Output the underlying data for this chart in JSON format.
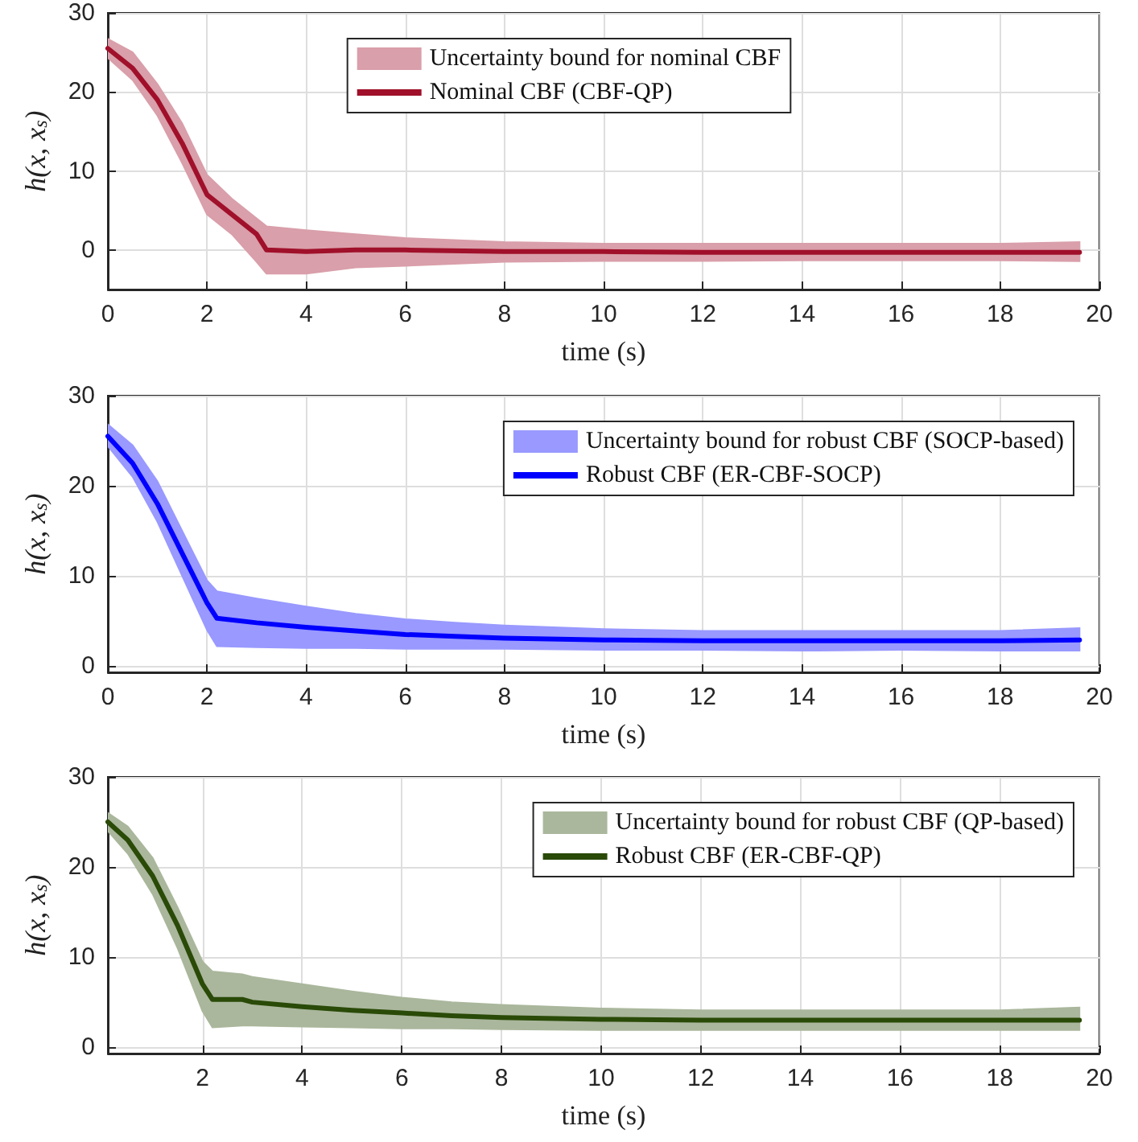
{
  "chart_data": [
    {
      "type": "line",
      "xlabel": "time (s)",
      "ylabel": "h(x, x$_{s}$)",
      "xlim": [
        0,
        20
      ],
      "ylim": [
        -5,
        30
      ],
      "xticks": [
        0,
        2,
        4,
        6,
        8,
        10,
        12,
        14,
        16,
        18,
        20
      ],
      "yticks": [
        0,
        10,
        20,
        30
      ],
      "grid": true,
      "legend": "top",
      "line_style": "solid",
      "marker": "none",
      "annotations": [
        "Uncertainty bound for nominal CBF"
      ],
      "series": [
        {
          "name": "Nominal CBF (CBF-QP)",
          "color": "#a0102a",
          "x": [
            0,
            0.5,
            1,
            1.5,
            2,
            2.5,
            3,
            3.2,
            4,
            5,
            6,
            8,
            10,
            12,
            14,
            16,
            18,
            19.6
          ],
          "values": [
            25.5,
            23,
            19,
            13.5,
            7,
            4.5,
            2,
            0,
            -0.2,
            0,
            0,
            -0.2,
            -0.2,
            -0.3,
            -0.3,
            -0.3,
            -0.3,
            -0.3
          ],
          "lower": [
            24.3,
            21.5,
            17,
            11,
            4.5,
            2,
            -1.5,
            -3,
            -3,
            -2.2,
            -2,
            -1.5,
            -1.4,
            -1.4,
            -1.3,
            -1.3,
            -1.3,
            -1.4
          ],
          "upper": [
            26.7,
            25,
            21,
            16,
            9.5,
            6.5,
            4,
            3,
            2.5,
            2,
            1.5,
            1,
            0.8,
            0.8,
            0.8,
            0.8,
            0.8,
            1
          ]
        }
      ]
    },
    {
      "type": "line",
      "xlabel": "time (s)",
      "ylabel": "h(x, x$_{s}$)",
      "xlim": [
        0,
        20
      ],
      "ylim": [
        -0.7,
        30
      ],
      "xticks": [
        0,
        2,
        4,
        6,
        8,
        10,
        12,
        14,
        16,
        18,
        20
      ],
      "yticks": [
        0,
        10,
        20,
        30
      ],
      "grid": true,
      "legend": "top right",
      "line_style": "solid",
      "marker": "none",
      "annotations": [
        "Uncertainty bound for robust CBF (SOCP-based)"
      ],
      "series": [
        {
          "name": "Robust CBF (ER-CBF-SOCP)",
          "color": "#0000ff",
          "x": [
            0,
            0.5,
            1,
            1.5,
            2,
            2.2,
            3,
            4,
            5,
            6,
            7,
            8,
            10,
            12,
            14,
            16,
            18,
            19.6
          ],
          "values": [
            25.5,
            22.5,
            18,
            12.5,
            7,
            5.3,
            4.8,
            4.3,
            3.9,
            3.5,
            3.3,
            3.1,
            2.9,
            2.8,
            2.8,
            2.8,
            2.8,
            2.9
          ],
          "lower": [
            24.4,
            21,
            16,
            10,
            4,
            2.2,
            2.1,
            2,
            2,
            1.9,
            1.9,
            1.9,
            1.8,
            1.8,
            1.7,
            1.8,
            1.7,
            1.7
          ],
          "upper": [
            26.8,
            24.5,
            20.5,
            15,
            9.5,
            8.3,
            7.5,
            6.6,
            5.8,
            5.2,
            4.8,
            4.5,
            4.1,
            3.9,
            3.9,
            3.9,
            3.9,
            4.2
          ]
        }
      ]
    },
    {
      "type": "line",
      "xlabel": "time (s)",
      "ylabel": "h(x, x$_{s}$)",
      "xlim": [
        0.1,
        20
      ],
      "ylim": [
        -0.7,
        30
      ],
      "xticks": [
        2,
        4,
        6,
        8,
        10,
        12,
        14,
        16,
        18,
        20
      ],
      "yticks": [
        0,
        10,
        20,
        30
      ],
      "grid": true,
      "legend": "top right",
      "line_style": "solid",
      "marker": "none",
      "annotations": [
        "Uncertainty bound for robust CBF (QP-based)"
      ],
      "series": [
        {
          "name": "Robust CBF (ER-CBF-QP)",
          "color": "#2a4a08",
          "x": [
            0.1,
            0.5,
            1,
            1.5,
            2,
            2.2,
            2.8,
            3,
            4,
            5,
            6,
            7,
            8,
            10,
            12,
            14,
            16,
            18,
            19.6
          ],
          "values": [
            25,
            23,
            19,
            13.5,
            7,
            5.3,
            5.3,
            5,
            4.5,
            4.1,
            3.8,
            3.5,
            3.3,
            3.1,
            3.0,
            3.0,
            3.0,
            3.0,
            3.0
          ],
          "lower": [
            24,
            21.5,
            17,
            11,
            4,
            2.2,
            2.4,
            2.4,
            2.3,
            2.2,
            2.1,
            2.1,
            2,
            1.9,
            1.9,
            1.9,
            1.9,
            1.9,
            1.9
          ],
          "upper": [
            26,
            24.5,
            21,
            15.5,
            9.5,
            8.4,
            8.1,
            7.8,
            7,
            6.2,
            5.5,
            5,
            4.7,
            4.3,
            4.1,
            4.1,
            4.1,
            4.1,
            4.4
          ]
        }
      ]
    }
  ]
}
